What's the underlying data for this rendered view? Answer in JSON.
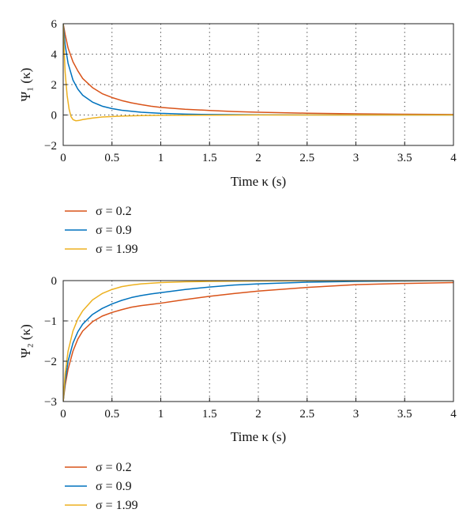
{
  "chart_data": [
    {
      "type": "line",
      "ylabel": "Ψ₁ (κ)",
      "xlabel": "Time κ (s)",
      "xlim": [
        0,
        4
      ],
      "ylim": [
        -2,
        6
      ],
      "xticks": [
        "0",
        "0.5",
        "1",
        "1.5",
        "2",
        "2.5",
        "3",
        "3.5",
        "4"
      ],
      "yticks": [
        "−2",
        "0",
        "2",
        "4",
        "6"
      ],
      "grid": true,
      "legend": "below",
      "series": [
        {
          "name": "σ = 0.2",
          "color": "#d95319",
          "points": [
            [
              0,
              6
            ],
            [
              0.02,
              5.3
            ],
            [
              0.05,
              4.4
            ],
            [
              0.1,
              3.5
            ],
            [
              0.15,
              2.9
            ],
            [
              0.2,
              2.4
            ],
            [
              0.3,
              1.8
            ],
            [
              0.4,
              1.4
            ],
            [
              0.5,
              1.15
            ],
            [
              0.6,
              0.95
            ],
            [
              0.7,
              0.8
            ],
            [
              0.8,
              0.68
            ],
            [
              0.9,
              0.58
            ],
            [
              1,
              0.5
            ],
            [
              1.25,
              0.38
            ],
            [
              1.5,
              0.3
            ],
            [
              1.75,
              0.23
            ],
            [
              2,
              0.18
            ],
            [
              2.5,
              0.12
            ],
            [
              3,
              0.08
            ],
            [
              3.5,
              0.05
            ],
            [
              4,
              0.03
            ]
          ]
        },
        {
          "name": "σ = 0.9",
          "color": "#0072bd",
          "points": [
            [
              0,
              6
            ],
            [
              0.02,
              4.6
            ],
            [
              0.05,
              3.4
            ],
            [
              0.1,
              2.3
            ],
            [
              0.15,
              1.7
            ],
            [
              0.2,
              1.3
            ],
            [
              0.3,
              0.85
            ],
            [
              0.4,
              0.58
            ],
            [
              0.5,
              0.42
            ],
            [
              0.6,
              0.31
            ],
            [
              0.8,
              0.18
            ],
            [
              1,
              0.11
            ],
            [
              1.25,
              0.06
            ],
            [
              1.5,
              0.03
            ],
            [
              2,
              0.01
            ],
            [
              2.5,
              0.005
            ],
            [
              3,
              0
            ],
            [
              4,
              0
            ]
          ]
        },
        {
          "name": "σ = 1.99",
          "color": "#edb120",
          "points": [
            [
              0,
              6
            ],
            [
              0.01,
              4.2
            ],
            [
              0.02,
              2.8
            ],
            [
              0.04,
              1.3
            ],
            [
              0.06,
              0.4
            ],
            [
              0.08,
              -0.1
            ],
            [
              0.1,
              -0.3
            ],
            [
              0.13,
              -0.38
            ],
            [
              0.16,
              -0.36
            ],
            [
              0.2,
              -0.3
            ],
            [
              0.3,
              -0.2
            ],
            [
              0.4,
              -0.13
            ],
            [
              0.6,
              -0.07
            ],
            [
              0.8,
              -0.04
            ],
            [
              1,
              -0.02
            ],
            [
              1.5,
              -0.01
            ],
            [
              2,
              0
            ],
            [
              4,
              0
            ]
          ]
        }
      ]
    },
    {
      "type": "line",
      "ylabel": "Ψ₂ (κ)",
      "xlabel": "Time κ (s)",
      "xlim": [
        0,
        4
      ],
      "ylim": [
        -3,
        0
      ],
      "xticks": [
        "0",
        "0.5",
        "1",
        "1.5",
        "2",
        "2.5",
        "3",
        "3.5",
        "4"
      ],
      "yticks": [
        "−3",
        "−2",
        "−1",
        "0"
      ],
      "grid": true,
      "legend": "below",
      "series": [
        {
          "name": "σ = 0.2",
          "color": "#d95319",
          "points": [
            [
              0,
              -3
            ],
            [
              0.02,
              -2.6
            ],
            [
              0.05,
              -2.2
            ],
            [
              0.1,
              -1.75
            ],
            [
              0.15,
              -1.45
            ],
            [
              0.2,
              -1.25
            ],
            [
              0.3,
              -1.02
            ],
            [
              0.4,
              -0.88
            ],
            [
              0.5,
              -0.79
            ],
            [
              0.6,
              -0.72
            ],
            [
              0.7,
              -0.66
            ],
            [
              0.8,
              -0.62
            ],
            [
              0.9,
              -0.59
            ],
            [
              1,
              -0.56
            ],
            [
              1.25,
              -0.47
            ],
            [
              1.5,
              -0.39
            ],
            [
              1.75,
              -0.32
            ],
            [
              2,
              -0.26
            ],
            [
              2.5,
              -0.17
            ],
            [
              3,
              -0.1
            ],
            [
              3.5,
              -0.07
            ],
            [
              4,
              -0.05
            ]
          ]
        },
        {
          "name": "σ = 0.9",
          "color": "#0072bd",
          "points": [
            [
              0,
              -3
            ],
            [
              0.02,
              -2.5
            ],
            [
              0.05,
              -2.0
            ],
            [
              0.1,
              -1.55
            ],
            [
              0.15,
              -1.27
            ],
            [
              0.2,
              -1.08
            ],
            [
              0.3,
              -0.84
            ],
            [
              0.4,
              -0.69
            ],
            [
              0.5,
              -0.58
            ],
            [
              0.6,
              -0.49
            ],
            [
              0.7,
              -0.42
            ],
            [
              0.8,
              -0.37
            ],
            [
              0.9,
              -0.33
            ],
            [
              1,
              -0.3
            ],
            [
              1.25,
              -0.22
            ],
            [
              1.5,
              -0.16
            ],
            [
              1.75,
              -0.11
            ],
            [
              2,
              -0.08
            ],
            [
              2.5,
              -0.04
            ],
            [
              3,
              -0.02
            ],
            [
              3.5,
              -0.01
            ],
            [
              4,
              0
            ]
          ]
        },
        {
          "name": "σ = 1.99",
          "color": "#edb120",
          "points": [
            [
              0,
              -3
            ],
            [
              0.02,
              -2.3
            ],
            [
              0.05,
              -1.75
            ],
            [
              0.1,
              -1.25
            ],
            [
              0.15,
              -0.95
            ],
            [
              0.2,
              -0.75
            ],
            [
              0.3,
              -0.48
            ],
            [
              0.4,
              -0.32
            ],
            [
              0.5,
              -0.22
            ],
            [
              0.6,
              -0.15
            ],
            [
              0.7,
              -0.11
            ],
            [
              0.8,
              -0.08
            ],
            [
              1,
              -0.05
            ],
            [
              1.25,
              -0.03
            ],
            [
              1.5,
              -0.02
            ],
            [
              2,
              -0.01
            ],
            [
              3,
              0
            ],
            [
              4,
              0
            ]
          ]
        }
      ]
    }
  ]
}
